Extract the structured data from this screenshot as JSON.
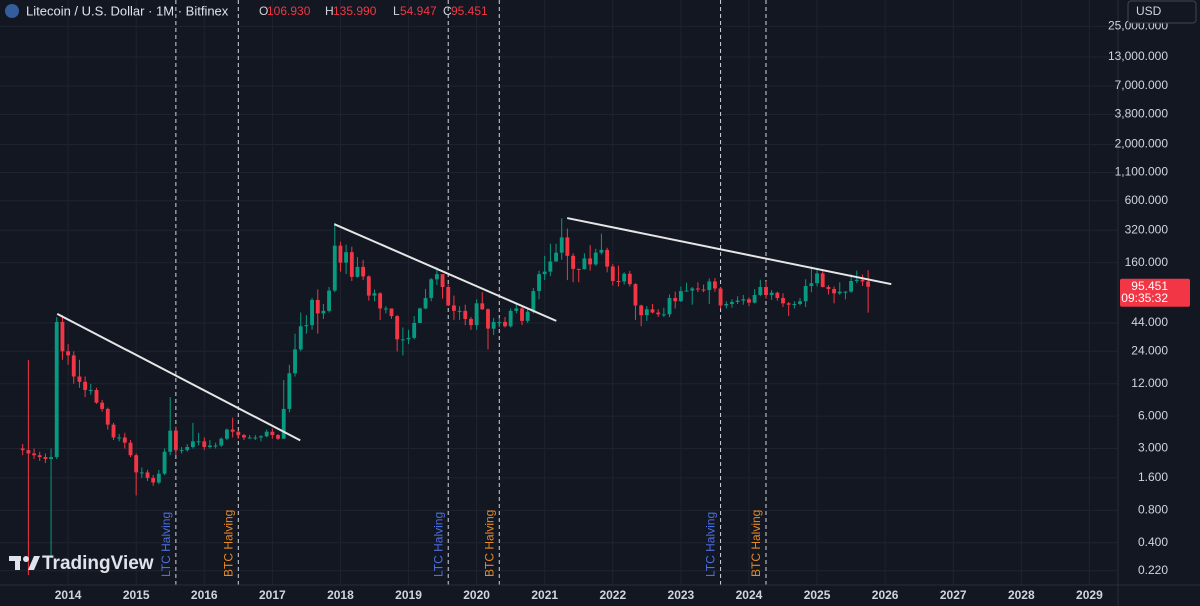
{
  "chart_data": {
    "type": "candlestick",
    "title": "Litecoin / U.S. Dollar · 1M · Bitfinex",
    "ohlc_legend": [
      {
        "key": "O",
        "value": 106.93,
        "label": "106.930"
      },
      {
        "key": "H",
        "value": 135.99,
        "label": "135.990"
      },
      {
        "key": "L",
        "value": 54.947,
        "label": "54.947"
      },
      {
        "key": "C",
        "value": 95.451,
        "label": "95.451"
      }
    ],
    "currency": "USD",
    "watermark": "TradingView",
    "log_scale": true,
    "grid": true,
    "up_color": "#089981",
    "down_color": "#f23645",
    "xlim": [
      2013.0,
      2029.42
    ],
    "xticks": [
      2014,
      2015,
      2016,
      2017,
      2018,
      2019,
      2020,
      2021,
      2022,
      2023,
      2024,
      2025,
      2026,
      2027,
      2028,
      2029
    ],
    "ylim": [
      0.162,
      44000
    ],
    "yticks": [
      {
        "value": 0.22,
        "label": "0.220"
      },
      {
        "value": 0.4,
        "label": "0.400"
      },
      {
        "value": 0.8,
        "label": "0.800"
      },
      {
        "value": 1.6,
        "label": "1.600"
      },
      {
        "value": 3,
        "label": "3.000"
      },
      {
        "value": 6,
        "label": "6.000"
      },
      {
        "value": 12,
        "label": "12.000"
      },
      {
        "value": 24,
        "label": "24.000"
      },
      {
        "value": 44,
        "label": "44.000"
      },
      {
        "value": 160,
        "label": "160.000"
      },
      {
        "value": 320,
        "label": "320.000"
      },
      {
        "value": 600,
        "label": "600.000"
      },
      {
        "value": 1100,
        "label": "1,100.000"
      },
      {
        "value": 2000,
        "label": "2,000.000"
      },
      {
        "value": 3800,
        "label": "3,800.000"
      },
      {
        "value": 7000,
        "label": "7,000.000"
      },
      {
        "value": 13000,
        "label": "13,000.000"
      },
      {
        "value": 25000,
        "label": "25,000.000"
      }
    ],
    "last_price": 95.451,
    "countdown": "09:35:32",
    "x": [
      2013.333,
      2013.417,
      2013.5,
      2013.583,
      2013.667,
      2013.75,
      2013.833,
      2013.917,
      2014,
      2014.083,
      2014.167,
      2014.25,
      2014.333,
      2014.417,
      2014.5,
      2014.583,
      2014.667,
      2014.75,
      2014.833,
      2014.917,
      2015,
      2015.083,
      2015.167,
      2015.25,
      2015.333,
      2015.417,
      2015.5,
      2015.583,
      2015.667,
      2015.75,
      2015.833,
      2015.917,
      2016,
      2016.083,
      2016.167,
      2016.25,
      2016.333,
      2016.417,
      2016.5,
      2016.583,
      2016.667,
      2016.75,
      2016.833,
      2016.917,
      2017,
      2017.083,
      2017.167,
      2017.25,
      2017.333,
      2017.417,
      2017.5,
      2017.583,
      2017.667,
      2017.75,
      2017.833,
      2017.917,
      2018,
      2018.083,
      2018.167,
      2018.25,
      2018.333,
      2018.417,
      2018.5,
      2018.583,
      2018.667,
      2018.75,
      2018.833,
      2018.917,
      2019,
      2019.083,
      2019.167,
      2019.25,
      2019.333,
      2019.417,
      2019.5,
      2019.583,
      2019.667,
      2019.75,
      2019.833,
      2019.917,
      2020,
      2020.083,
      2020.167,
      2020.25,
      2020.333,
      2020.417,
      2020.5,
      2020.583,
      2020.667,
      2020.75,
      2020.833,
      2020.917,
      2021,
      2021.083,
      2021.167,
      2021.25,
      2021.333,
      2021.417,
      2021.5,
      2021.583,
      2021.667,
      2021.75,
      2021.833,
      2021.917,
      2022,
      2022.083,
      2022.167,
      2022.25,
      2022.333,
      2022.417,
      2022.5,
      2022.583,
      2022.667,
      2022.75,
      2022.833,
      2022.917,
      2023,
      2023.083,
      2023.167,
      2023.25,
      2023.333,
      2023.417,
      2023.5,
      2023.583,
      2023.667,
      2023.75,
      2023.833,
      2023.917,
      2024,
      2024.083,
      2024.167,
      2024.25,
      2024.333,
      2024.417,
      2024.5,
      2024.583,
      2024.667,
      2024.75,
      2024.833,
      2024.917,
      2025,
      2025.083,
      2025.167,
      2025.25,
      2025.333,
      2025.417,
      2025.5,
      2025.583,
      2025.667,
      2025.75
    ],
    "open": [
      3,
      2.9,
      2.7,
      2.6,
      2.5,
      2.4,
      2.5,
      45,
      24,
      22,
      14,
      12.5,
      10.5,
      10.5,
      8,
      7,
      5,
      3.8,
      3.8,
      3.4,
      2.6,
      1.8,
      1.8,
      1.6,
      1.45,
      1.75,
      2.8,
      4.4,
      2.9,
      2.9,
      3.1,
      3.5,
      3.5,
      3.1,
      3.2,
      3.2,
      3.7,
      4.5,
      4.3,
      4,
      3.8,
      3.8,
      3.8,
      3.9,
      4.3,
      4,
      3.7,
      7,
      15,
      25,
      41,
      42,
      72,
      54,
      57,
      88,
      230,
      160,
      200,
      118,
      146,
      119,
      79,
      83,
      60,
      60,
      51,
      31,
      31,
      32,
      44,
      60,
      75,
      112,
      125,
      95,
      64,
      57,
      57,
      48,
      42,
      67,
      59,
      39,
      45,
      45,
      41,
      57,
      60,
      46,
      56,
      87,
      125,
      132,
      164,
      198,
      274,
      185,
      140,
      139,
      175,
      154,
      198,
      210,
      147,
      108,
      107,
      126,
      101,
      64,
      52,
      59,
      55,
      53,
      53,
      75,
      70,
      87,
      88,
      92,
      90,
      89,
      107,
      92,
      64,
      66,
      69,
      71,
      73,
      68,
      80,
      95,
      80,
      84,
      75,
      67,
      65,
      66,
      70,
      97,
      103,
      127,
      95,
      91,
      83,
      86,
      86,
      108,
      111,
      106.93
    ],
    "high": [
      3.3,
      20,
      3,
      2.8,
      2.7,
      3,
      50,
      52,
      28,
      24,
      20,
      14,
      12,
      11,
      8.5,
      7.2,
      5.2,
      4.1,
      4.2,
      3.6,
      2.7,
      2,
      1.9,
      1.7,
      1.9,
      3,
      9,
      4.8,
      3.1,
      3.3,
      5.2,
      4.2,
      3.8,
      3.6,
      3.4,
      3.8,
      4.6,
      5.8,
      4.4,
      4.1,
      4,
      4,
      4,
      4.5,
      4.6,
      4.1,
      13,
      18,
      35,
      55,
      52,
      75,
      90,
      66,
      95,
      375,
      250,
      235,
      225,
      180,
      170,
      122,
      90,
      85,
      63,
      60,
      52,
      40,
      38,
      51,
      61,
      91,
      115,
      145,
      125,
      100,
      79,
      63,
      65,
      50,
      73,
      85,
      60,
      49,
      49,
      50,
      60,
      66,
      62,
      60,
      93,
      135,
      185,
      240,
      240,
      413,
      331,
      195,
      140,
      195,
      233,
      215,
      297,
      220,
      155,
      150,
      130,
      134,
      103,
      65,
      63,
      66,
      59,
      61,
      81,
      86,
      96,
      104,
      95,
      105,
      100,
      114,
      115,
      95,
      70,
      73,
      78,
      80,
      76,
      91,
      111,
      107,
      89,
      86,
      83,
      69,
      70,
      75,
      112,
      147,
      141,
      138,
      99,
      96,
      105,
      87,
      125,
      135,
      124,
      135.99
    ],
    "low": [
      2.6,
      0.2,
      2.4,
      2.3,
      2.2,
      0.3,
      2.4,
      20,
      18,
      12,
      11,
      9,
      9.5,
      7.8,
      6.6,
      4.5,
      3.6,
      3.5,
      3,
      2.5,
      1.1,
      1.6,
      1.5,
      1.35,
      1.4,
      1.7,
      2.6,
      2.6,
      2.7,
      2.8,
      3,
      3.2,
      2.9,
      3,
      3,
      3.1,
      3.6,
      3.8,
      3.7,
      3.6,
      3.7,
      3.6,
      3.5,
      3.8,
      3.7,
      3.6,
      3.7,
      6.5,
      14,
      24,
      35,
      38,
      35,
      48,
      55,
      85,
      132,
      125,
      108,
      116,
      110,
      71,
      70,
      47,
      54,
      48,
      24,
      22,
      28,
      31,
      44,
      59,
      70,
      99,
      74,
      63,
      47,
      47,
      42,
      38,
      38,
      58,
      25,
      34,
      40,
      40,
      40,
      54,
      42,
      44,
      54,
      73,
      110,
      120,
      163,
      170,
      110,
      105,
      105,
      138,
      135,
      150,
      190,
      130,
      98,
      96,
      100,
      96,
      47,
      41,
      46,
      54,
      50,
      50,
      50,
      60,
      69,
      86,
      65,
      85,
      85,
      66,
      86,
      60,
      60,
      61,
      66,
      65,
      63,
      67,
      78,
      74,
      72,
      71,
      62,
      51,
      60,
      64,
      62,
      85,
      96,
      94,
      81,
      67,
      80,
      73,
      84,
      103,
      97,
      54.947
    ],
    "close": [
      2.9,
      2.7,
      2.6,
      2.5,
      2.4,
      2.5,
      45,
      24,
      22,
      14,
      12.5,
      10.5,
      10.5,
      8,
      7,
      5,
      3.8,
      3.8,
      3.4,
      2.6,
      1.8,
      1.8,
      1.6,
      1.45,
      1.75,
      2.8,
      4.4,
      2.9,
      2.9,
      3.1,
      3.5,
      3.5,
      3.1,
      3.2,
      3.2,
      3.7,
      4.5,
      4.3,
      4,
      3.8,
      3.8,
      3.8,
      3.9,
      4.3,
      4,
      3.7,
      7,
      15,
      25,
      41,
      42,
      72,
      54,
      57,
      88,
      230,
      160,
      200,
      118,
      146,
      119,
      79,
      83,
      60,
      60,
      51,
      31,
      31,
      32,
      44,
      60,
      75,
      112,
      125,
      95,
      64,
      57,
      57,
      48,
      42,
      67,
      59,
      39,
      45,
      45,
      41,
      57,
      60,
      46,
      56,
      87,
      125,
      132,
      164,
      198,
      274,
      185,
      140,
      139,
      175,
      154,
      198,
      210,
      147,
      108,
      107,
      126,
      101,
      64,
      52,
      59,
      55,
      53,
      53,
      75,
      70,
      87,
      88,
      92,
      90,
      89,
      107,
      92,
      64,
      66,
      69,
      71,
      73,
      68,
      80,
      95,
      80,
      84,
      75,
      67,
      65,
      66,
      70,
      97,
      103,
      127,
      95,
      91,
      83,
      86,
      86,
      108,
      111,
      106.93,
      95.451
    ],
    "events": [
      {
        "x": 2015.583,
        "label": "LTC Halving",
        "color": "#4d6fe0"
      },
      {
        "x": 2016.5,
        "label": "BTC Halving",
        "color": "#e88a25"
      },
      {
        "x": 2019.583,
        "label": "LTC Halving",
        "color": "#4d6fe0"
      },
      {
        "x": 2020.333,
        "label": "BTC Halving",
        "color": "#e88a25"
      },
      {
        "x": 2023.583,
        "label": "LTC Halving",
        "color": "#4d6fe0"
      },
      {
        "x": 2024.25,
        "label": "BTC Halving",
        "color": "#e88a25"
      }
    ],
    "trendlines": [
      {
        "x": [
          2013.84,
          2017.41
        ],
        "y": [
          53.5,
          3.57
        ],
        "color": "#e6e6e6"
      },
      {
        "x": [
          2017.91,
          2021.17
        ],
        "y": [
          364,
          46
        ],
        "color": "#e6e6e6"
      },
      {
        "x": [
          2021.33,
          2026.09
        ],
        "y": [
          415,
          101
        ],
        "color": "#e6e6e6"
      }
    ]
  }
}
